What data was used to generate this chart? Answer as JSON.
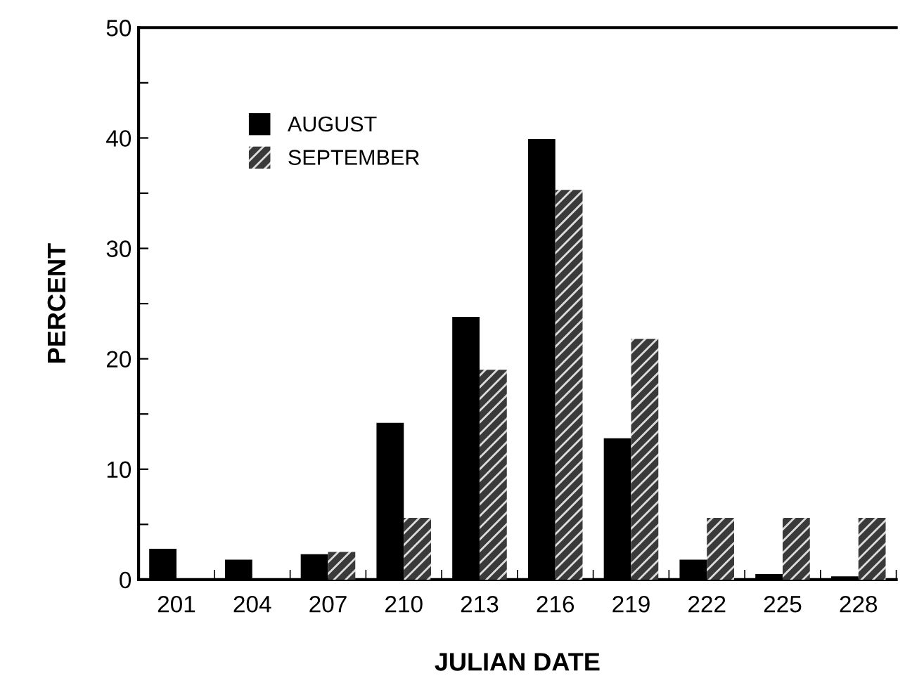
{
  "chart_data": {
    "type": "bar",
    "xlabel": "JULIAN DATE",
    "ylabel": "PERCENT",
    "categories": [
      "201",
      "204",
      "207",
      "210",
      "213",
      "216",
      "219",
      "222",
      "225",
      "228"
    ],
    "series": [
      {
        "name": "AUGUST",
        "color": "#000000",
        "values": [
          2.8,
          1.8,
          2.3,
          14.2,
          23.8,
          39.9,
          12.8,
          1.8,
          0.5,
          0.3
        ]
      },
      {
        "name": "SEPTEMBER",
        "color": "#3a3a3a",
        "values": [
          0,
          0,
          2.5,
          5.6,
          19,
          35.3,
          21.8,
          5.6,
          5.6,
          5.6
        ]
      }
    ],
    "ylim": [
      0,
      50
    ],
    "yticks": [
      0,
      {
        "value": 5,
        "label": null
      },
      10,
      {
        "value": 15,
        "label": null
      },
      20,
      {
        "value": 25,
        "label": null
      },
      30,
      {
        "value": 35,
        "label": null
      },
      40,
      {
        "value": 45,
        "label": null
      },
      50
    ],
    "grid": false,
    "legend": "top left"
  }
}
